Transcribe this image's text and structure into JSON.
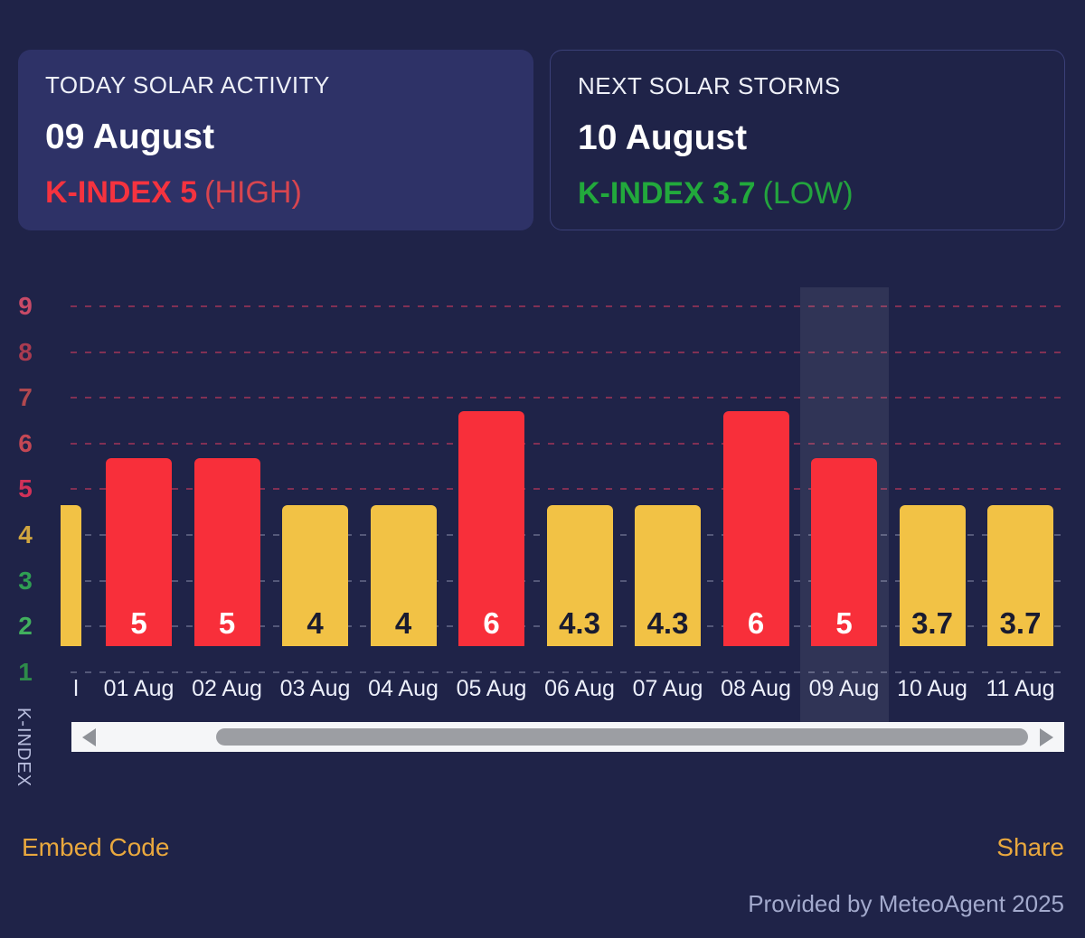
{
  "cards": {
    "today": {
      "title": "TODAY SOLAR ACTIVITY",
      "date": "09 August",
      "kindex_label": "K-INDEX 5",
      "status_label": "(HIGH)",
      "kindex_color": "#f5333f",
      "status_color": "#d8454f"
    },
    "next": {
      "title": "NEXT SOLAR STORMS",
      "date": "10 August",
      "kindex_label": "K-INDEX 3.7",
      "status_label": "(LOW)",
      "kindex_color": "#22a93c",
      "status_color": "#23a43e"
    }
  },
  "chart_data": {
    "type": "bar",
    "ylabel": "K-INDEX",
    "ylim": [
      1,
      9
    ],
    "grid": "horizontal-dashed",
    "legend": "none",
    "categories": [
      "01 Aug",
      "02 Aug",
      "03 Aug",
      "04 Aug",
      "05 Aug",
      "06 Aug",
      "07 Aug",
      "08 Aug",
      "09 Aug",
      "10 Aug",
      "11 Aug"
    ],
    "values": [
      5,
      5,
      4,
      4,
      6,
      4.3,
      4.3,
      6,
      5,
      3.7,
      3.7
    ],
    "severity": [
      "red",
      "red",
      "yellow",
      "yellow",
      "red",
      "yellow",
      "yellow",
      "red",
      "red",
      "yellow",
      "yellow"
    ],
    "leading_partial_bar": {
      "label": "l",
      "value": 4,
      "severity": "yellow"
    },
    "highlighted_category": "09 Aug",
    "yticks": [
      {
        "value": 9,
        "color": "#c84a67"
      },
      {
        "value": 8,
        "color": "#aa3b50"
      },
      {
        "value": 7,
        "color": "#b0484f"
      },
      {
        "value": 6,
        "color": "#c44754"
      },
      {
        "value": 5,
        "color": "#d13158"
      },
      {
        "value": 4,
        "color": "#d0a53f"
      },
      {
        "value": 3,
        "color": "#2f9e53"
      },
      {
        "value": 2,
        "color": "#41b05e"
      },
      {
        "value": 1,
        "color": "#2e8c4a"
      }
    ]
  },
  "colors": {
    "background": "#1f2348",
    "bar_red": "#f82f3a",
    "bar_yellow": "#f2c245",
    "label_on_red": "#ffffff",
    "label_on_yellow": "#191b30",
    "gridline_red": "rgba(210,58,94,0.55)",
    "gridline_gray": "rgba(206,211,234,0.30)"
  },
  "scrollbar": {
    "left_arrow_icon": "left-triangle",
    "right_arrow_icon": "right-triangle"
  },
  "links": {
    "embed_code": "Embed Code",
    "share": "Share"
  },
  "footer": {
    "credit": "Provided by MeteoAgent 2025"
  }
}
